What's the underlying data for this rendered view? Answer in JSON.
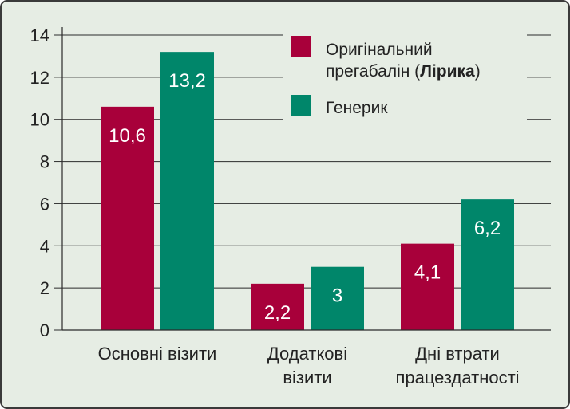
{
  "chart_data": {
    "type": "bar",
    "categories": [
      [
        "Основні візити"
      ],
      [
        "Додаткові",
        "візити"
      ],
      [
        "Дні втрати",
        "працездатності"
      ]
    ],
    "series": [
      {
        "name": "Оригінальний прегабалін (Лірика)",
        "color": "#a8003a",
        "values": [
          10.6,
          2.2,
          4.1
        ],
        "labels": [
          "10,6",
          "2,2",
          "4,1"
        ]
      },
      {
        "name": "Генерик",
        "color": "#00866a",
        "values": [
          13.2,
          3,
          6.2
        ],
        "labels": [
          "13,2",
          "3",
          "6,2"
        ]
      }
    ],
    "ylim": [
      0,
      14
    ],
    "yticks": [
      0,
      2,
      4,
      6,
      8,
      10,
      12,
      14
    ],
    "ytick_labels": [
      "0",
      "2",
      "4",
      "6",
      "8",
      "10",
      "12",
      "14"
    ],
    "grid": true,
    "legend": {
      "position": "top-right",
      "items": [
        {
          "lines": [
            "Оригінальний"
          ],
          "line2_pre": "прегабалін (",
          "line2_bold": "Лірика",
          "line2_post": ")"
        },
        {
          "lines": [
            "Генерик"
          ]
        }
      ]
    }
  }
}
